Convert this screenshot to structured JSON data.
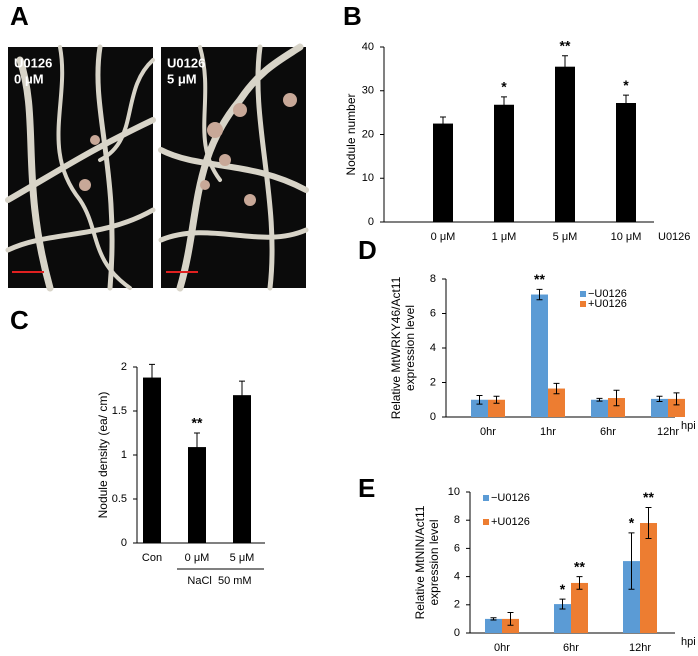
{
  "figure": {
    "panel_labels": [
      "A",
      "B",
      "C",
      "D",
      "E"
    ],
    "photos": [
      {
        "lines": [
          "U0126",
          "0 μM"
        ]
      },
      {
        "lines": [
          "U0126",
          "5 μM"
        ]
      }
    ]
  },
  "chart_data": [
    {
      "type": "bar",
      "ylabel": "Nodule number",
      "categories": [
        "0 μM",
        "1 μM",
        "5 μM",
        "10 μM"
      ],
      "values": [
        22.5,
        26.8,
        35.5,
        27.2
      ],
      "errors": [
        1.5,
        1.8,
        2.5,
        1.8
      ],
      "annotations": [
        null,
        "*",
        "**",
        "*"
      ],
      "x_extra_label": "U0126",
      "color": "#000000",
      "ylim": [
        0,
        40
      ],
      "yticks": [
        0,
        10,
        20,
        30,
        40
      ]
    },
    {
      "type": "bar",
      "ylabel": "Nodule density (ea/ cm)",
      "categories": [
        "Con",
        "0 μM",
        "5 μM"
      ],
      "values": [
        1.88,
        1.09,
        1.68
      ],
      "errors": [
        0.15,
        0.16,
        0.16
      ],
      "annotations": [
        null,
        "**",
        null
      ],
      "group_label": "NaCl  50 mM",
      "color": "#000000",
      "ylim": [
        0,
        2
      ],
      "yticks": [
        0,
        0.5,
        1,
        1.5,
        2
      ]
    },
    {
      "type": "grouped_bar",
      "ylabel": [
        "Relative MtWRKY46/Act11",
        "expression level"
      ],
      "categories": [
        "0hr",
        "1hr",
        "6hr",
        "12hr"
      ],
      "xunit": "hpi",
      "series": [
        {
          "name": "−U0126",
          "color": "#5b9bd5",
          "values": [
            1.0,
            7.1,
            1.0,
            1.05
          ],
          "errors": [
            0.25,
            0.3,
            0.08,
            0.15
          ],
          "annotations": [
            null,
            "**",
            null,
            null
          ]
        },
        {
          "name": "+U0126",
          "color": "#ed7d31",
          "values": [
            1.0,
            1.65,
            1.1,
            1.05
          ],
          "errors": [
            0.2,
            0.3,
            0.45,
            0.35
          ],
          "annotations": [
            null,
            null,
            null,
            null
          ]
        }
      ],
      "ylim": [
        0,
        8
      ],
      "yticks": [
        0,
        2,
        4,
        6,
        8
      ]
    },
    {
      "type": "grouped_bar",
      "ylabel": [
        "Relative MtNIN/Act11",
        "expression level"
      ],
      "categories": [
        "0hr",
        "6hr",
        "12hr"
      ],
      "xunit": "hpi",
      "series": [
        {
          "name": "−U0126",
          "color": "#5b9bd5",
          "values": [
            1.0,
            2.05,
            5.1
          ],
          "errors": [
            0.08,
            0.35,
            2.0
          ],
          "annotations": [
            null,
            "*",
            "*"
          ]
        },
        {
          "name": "+U0126",
          "color": "#ed7d31",
          "values": [
            1.0,
            3.55,
            7.8
          ],
          "errors": [
            0.45,
            0.45,
            1.1
          ],
          "annotations": [
            null,
            "**",
            "**"
          ]
        }
      ],
      "ylim": [
        0,
        10
      ],
      "yticks": [
        0,
        2,
        4,
        6,
        8,
        10
      ]
    }
  ]
}
